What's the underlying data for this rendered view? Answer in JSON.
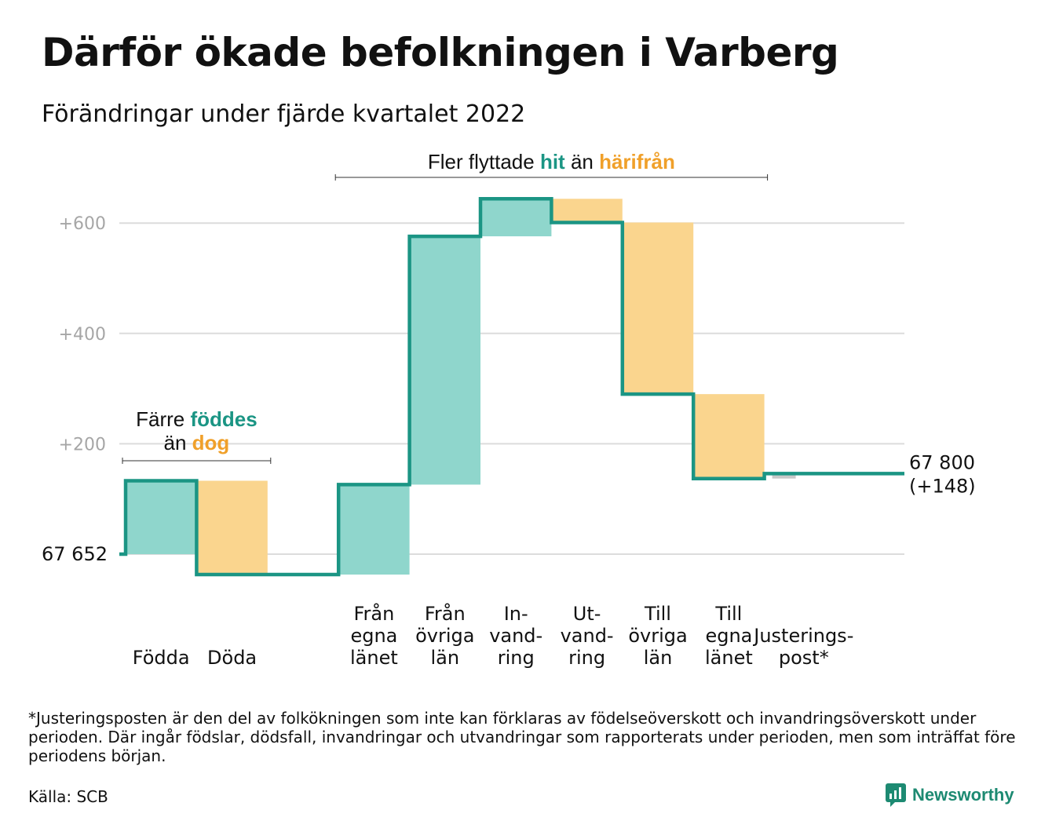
{
  "title": "Därför ökade befolkningen i Varberg",
  "subtitle": "Förändringar under fjärde kvartalet 2022",
  "chart_data": {
    "type": "waterfall",
    "start_value": 67652,
    "start_label": "67 652",
    "end_value": 67800,
    "end_label": "67 800",
    "end_change_label": "(+148)",
    "ylim": [
      -40,
      640
    ],
    "y_ticks": [
      {
        "value": 200,
        "label": "+200"
      },
      {
        "value": 400,
        "label": "+400"
      },
      {
        "value": 600,
        "label": "+600"
      }
    ],
    "steps": [
      {
        "label_lines": [
          "Födda"
        ],
        "change": 133,
        "direction": "in"
      },
      {
        "label_lines": [
          "Döda"
        ],
        "change": -170,
        "direction": "out"
      },
      {
        "label_lines": [
          "Från",
          "egna",
          "länet"
        ],
        "change": 163,
        "direction": "in"
      },
      {
        "label_lines": [
          "Från",
          "övriga",
          "län"
        ],
        "change": 450,
        "direction": "in"
      },
      {
        "label_lines": [
          "In-",
          "vand-",
          "ring"
        ],
        "change": 68,
        "direction": "in"
      },
      {
        "label_lines": [
          "Ut-",
          "vand-",
          "ring"
        ],
        "change": -43,
        "direction": "out"
      },
      {
        "label_lines": [
          "Till",
          "övriga",
          "län"
        ],
        "change": -311,
        "direction": "out"
      },
      {
        "label_lines": [
          "Till",
          "egna",
          "länet"
        ],
        "change": -153,
        "direction": "out"
      },
      {
        "label_lines": [
          "Justerings-",
          "post*"
        ],
        "change": 9,
        "direction": "adjust"
      }
    ],
    "annotations": {
      "births": {
        "line1": "Färre ",
        "accent1": "föddes",
        "line2": "än ",
        "accent2": "dog"
      },
      "migration": {
        "prefix": "Fler flyttade ",
        "accent1": "hit",
        "middle": " än ",
        "accent2": "härifrån"
      }
    },
    "colors": {
      "in": "#8fd6cc",
      "out": "#fad58e",
      "adjust": "#c8c8c8",
      "line": "#1b9584",
      "accent_in": "#1b9584",
      "accent_out": "#f0a02a",
      "grid": "#dcdcdc",
      "tick_text": "#a6a6a6"
    }
  },
  "footnote": "*Justeringsposten är den del av folkökningen som inte kan förklaras av födelseöverskott och invandringsöverskott under perioden. Där ingår födslar, dödsfall, invandringar och utvandringar som rapporterats under perioden, men som inträffat före periodens början.",
  "source": "Källa: SCB",
  "brand": {
    "name": "Newsworthy",
    "icon": "bar-chart-pin-icon",
    "color": "#1d8a72"
  }
}
